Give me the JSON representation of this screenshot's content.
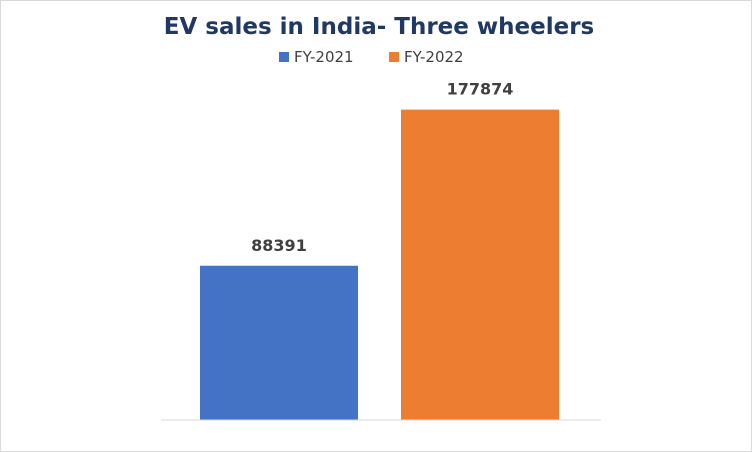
{
  "chart_data": {
    "type": "bar",
    "title": "EV sales in India- Three wheelers",
    "categories": [
      "FY-2021",
      "FY-2022"
    ],
    "values": [
      88391,
      177874
    ],
    "colors": [
      "#4472c4",
      "#ed7d31"
    ],
    "xlabel": "",
    "ylabel": "",
    "ylim": [
      0,
      200000
    ],
    "grid": false,
    "legend_position": "top"
  }
}
